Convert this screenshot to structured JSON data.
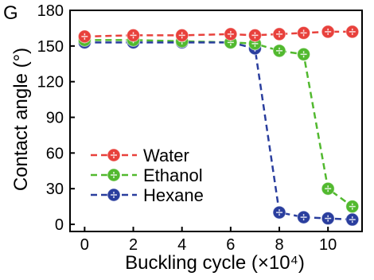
{
  "panel_label": "G",
  "chart_data": {
    "type": "line",
    "xlabel": "Buckling cycle (×10⁴)",
    "ylabel": "Contact angle (°)",
    "xlim": [
      -0.6,
      11.4
    ],
    "ylim": [
      -6,
      180
    ],
    "xticks": [
      0,
      2,
      4,
      6,
      8,
      10
    ],
    "yticks": [
      0,
      30,
      60,
      90,
      120,
      150,
      180
    ],
    "grid": false,
    "legend_position": "bottom-left",
    "x": [
      0,
      2,
      4,
      6,
      7,
      8,
      9,
      10,
      11
    ],
    "series": [
      {
        "name": "Water",
        "color": "#e8413c",
        "values": [
          158,
          159,
          159,
          160,
          159,
          160,
          161,
          162,
          162
        ]
      },
      {
        "name": "Ethanol",
        "color": "#52b92f",
        "values": [
          155,
          155,
          154,
          153,
          152,
          146,
          143,
          30,
          15
        ]
      },
      {
        "name": "Hexane",
        "color": "#2a3e9e",
        "values": [
          153,
          153,
          153,
          153,
          148,
          10,
          6,
          5,
          4
        ]
      }
    ]
  }
}
